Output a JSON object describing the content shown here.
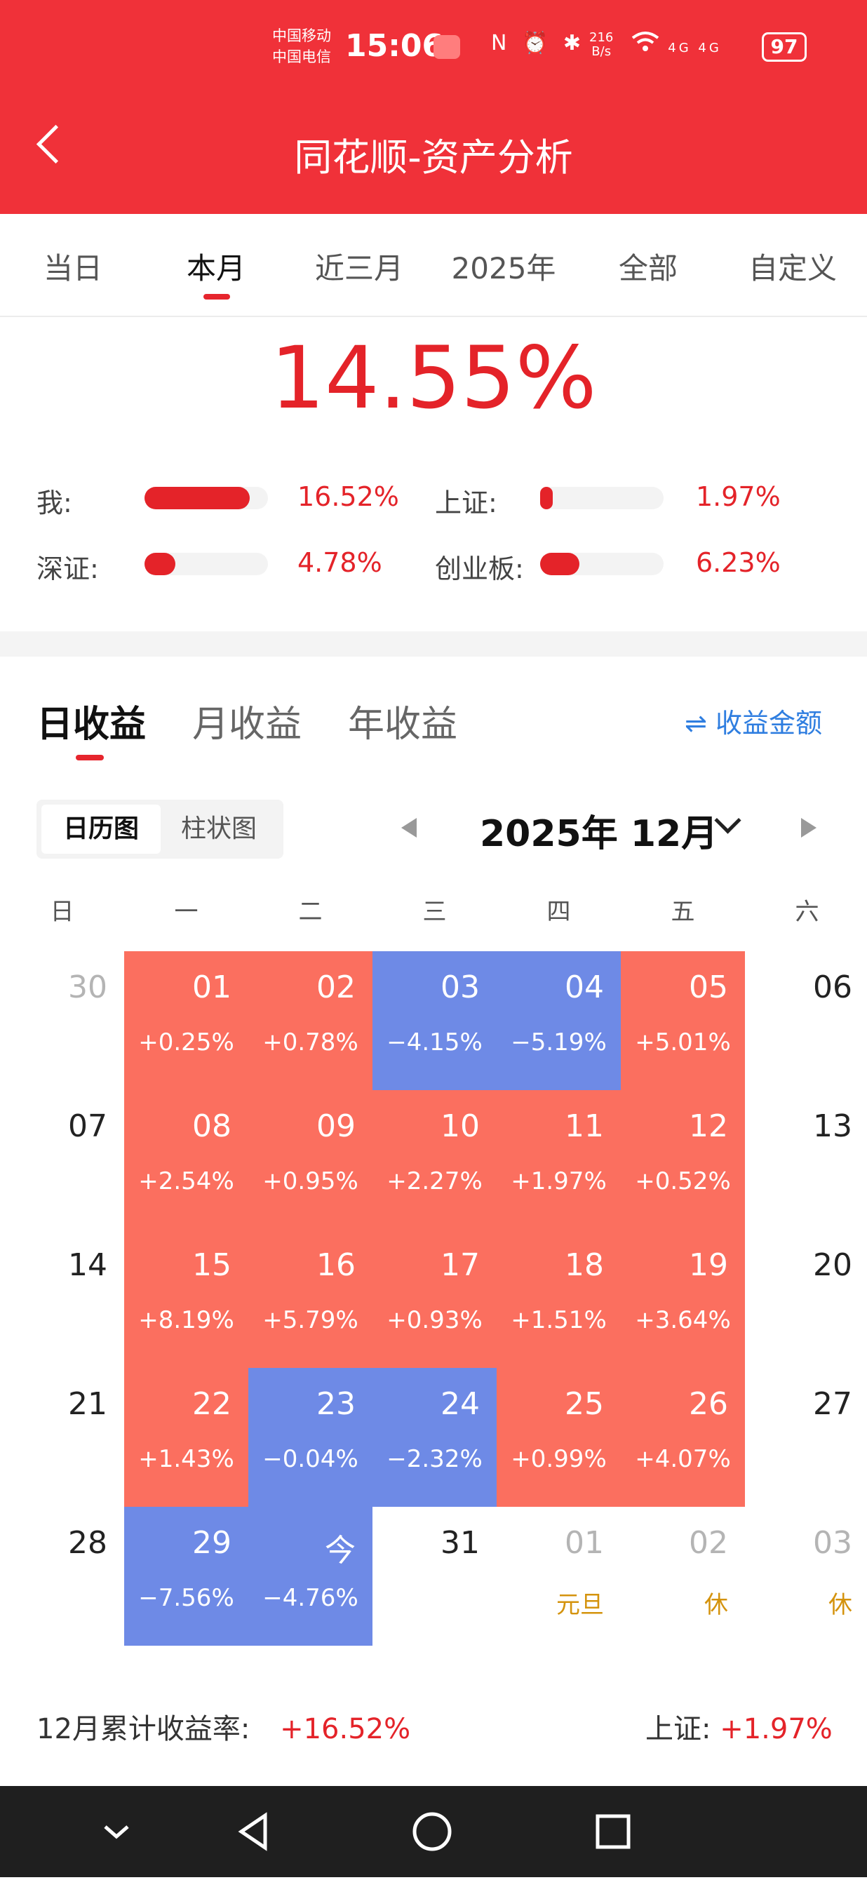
{
  "status_bar": {
    "carrier1": "中国移动",
    "carrier2": "中国电信",
    "time": "15:06",
    "icons": "N ⏰ ✱",
    "speed_value": "216",
    "speed_unit": "B/s",
    "net_icons": "4G 4G",
    "battery": "97"
  },
  "header": {
    "title": "同花顺-资产分析"
  },
  "range_tabs": [
    "当日",
    "本月",
    "近三月",
    "2025年",
    "全部",
    "自定义"
  ],
  "range_active": "本月",
  "headline_return": "14.55%",
  "comparisons": [
    {
      "label": "我:",
      "value": "16.52%",
      "fill": 0.85
    },
    {
      "label": "上证:",
      "value": "1.97%",
      "fill": 0.1
    },
    {
      "label": "深证:",
      "value": "4.78%",
      "fill": 0.25
    },
    {
      "label": "创业板:",
      "value": "6.23%",
      "fill": 0.32
    }
  ],
  "period_tabs": [
    "日收益",
    "月收益",
    "年收益"
  ],
  "period_active": "日收益",
  "switch_label": "收益金额",
  "view_toggle": [
    "日历图",
    "柱状图"
  ],
  "view_active": "日历图",
  "month_label": "2025年 12月",
  "weekdays": [
    "日",
    "一",
    "二",
    "三",
    "四",
    "五",
    "六"
  ],
  "calendar": [
    [
      {
        "d": "30",
        "s": "grey"
      },
      {
        "d": "01",
        "p": "+0.25%",
        "s": "up"
      },
      {
        "d": "02",
        "p": "+0.78%",
        "s": "up"
      },
      {
        "d": "03",
        "p": "−4.15%",
        "s": "down"
      },
      {
        "d": "04",
        "p": "−5.19%",
        "s": "down"
      },
      {
        "d": "05",
        "p": "+5.01%",
        "s": "up"
      },
      {
        "d": "06",
        "s": "plain"
      }
    ],
    [
      {
        "d": "07",
        "s": "plain"
      },
      {
        "d": "08",
        "p": "+2.54%",
        "s": "up"
      },
      {
        "d": "09",
        "p": "+0.95%",
        "s": "up"
      },
      {
        "d": "10",
        "p": "+2.27%",
        "s": "up"
      },
      {
        "d": "11",
        "p": "+1.97%",
        "s": "up"
      },
      {
        "d": "12",
        "p": "+0.52%",
        "s": "up"
      },
      {
        "d": "13",
        "s": "plain"
      }
    ],
    [
      {
        "d": "14",
        "s": "plain"
      },
      {
        "d": "15",
        "p": "+8.19%",
        "s": "up"
      },
      {
        "d": "16",
        "p": "+5.79%",
        "s": "up"
      },
      {
        "d": "17",
        "p": "+0.93%",
        "s": "up"
      },
      {
        "d": "18",
        "p": "+1.51%",
        "s": "up"
      },
      {
        "d": "19",
        "p": "+3.64%",
        "s": "up"
      },
      {
        "d": "20",
        "s": "plain"
      }
    ],
    [
      {
        "d": "21",
        "s": "plain"
      },
      {
        "d": "22",
        "p": "+1.43%",
        "s": "up"
      },
      {
        "d": "23",
        "p": "−0.04%",
        "s": "down"
      },
      {
        "d": "24",
        "p": "−2.32%",
        "s": "down"
      },
      {
        "d": "25",
        "p": "+0.99%",
        "s": "up"
      },
      {
        "d": "26",
        "p": "+4.07%",
        "s": "up"
      },
      {
        "d": "27",
        "s": "plain"
      }
    ],
    [
      {
        "d": "28",
        "s": "plain"
      },
      {
        "d": "29",
        "p": "−7.56%",
        "s": "down"
      },
      {
        "d": "今",
        "p": "−4.76%",
        "s": "down"
      },
      {
        "d": "31",
        "s": "plain"
      },
      {
        "d": "01",
        "h": "元旦",
        "s": "grey"
      },
      {
        "d": "02",
        "h": "休",
        "s": "grey"
      },
      {
        "d": "03",
        "h": "休",
        "s": "grey"
      }
    ]
  ],
  "summary": {
    "month_label": "12月累计收益率:",
    "month_value": "+16.52%",
    "index_label": "上证:",
    "index_value": "+1.97%"
  },
  "colors": {
    "brand": "#f03139",
    "up": "#fb6f5f",
    "down": "#6e8ae6",
    "link": "#2f7ee0"
  }
}
